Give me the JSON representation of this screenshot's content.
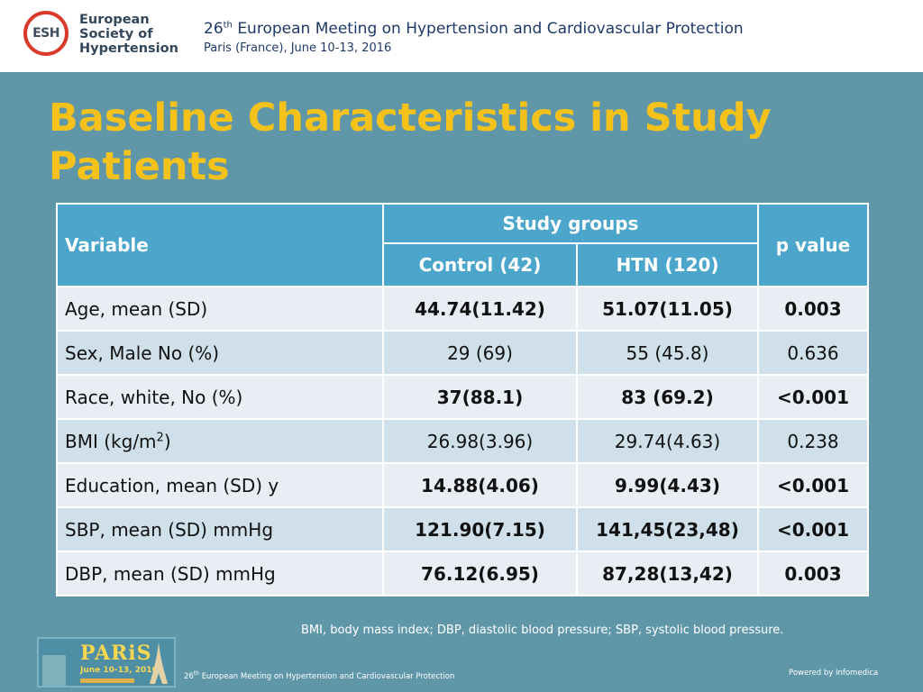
{
  "header": {
    "logo_abbrev": "ESH",
    "logo_lines": [
      "European",
      "Society of",
      "Hypertension"
    ],
    "conference_num": "26",
    "conference_suffix": "th",
    "conference_title": "European Meeting on Hypertension and Cardiovascular Protection",
    "conference_location": "Paris (France), June 10-13, 2016"
  },
  "slide": {
    "title_lines": [
      "Baseline Characteristics in Study",
      "Patients"
    ]
  },
  "table": {
    "header_variable": "Variable",
    "header_groups": "Study groups",
    "header_control": "Control (42)",
    "header_htn": "HTN (120)",
    "header_p": "p value",
    "rows": [
      {
        "variable": "Age, mean (SD)",
        "control": "44.74(11.42)",
        "htn": "51.07(11.05)",
        "p": "0.003"
      },
      {
        "variable": "Sex, Male No (%)",
        "control": "29 (69)",
        "htn": "55 (45.8)",
        "p": "0.636"
      },
      {
        "variable": "Race, white, No (%)",
        "control": "37(88.1)",
        "htn": "83 (69.2)",
        "p": "<0.001"
      },
      {
        "variable_prefix": "BMI (kg/m",
        "variable_sup": "2",
        "variable_suffix": ")",
        "control": "26.98(3.96)",
        "htn": "29.74(4.63)",
        "p": "0.238"
      },
      {
        "variable": "Education, mean (SD) y",
        "control": "14.88(4.06)",
        "htn": "9.99(4.43)",
        "p": "<0.001"
      },
      {
        "variable": "SBP, mean (SD) mmHg",
        "control": "121.90(7.15)",
        "htn": "141,45(23,48)",
        "p": "<0.001"
      },
      {
        "variable": "DBP, mean (SD) mmHg",
        "control": "76.12(6.95)",
        "htn": "87,28(13,42)",
        "p": "0.003"
      }
    ]
  },
  "footnote": "BMI, body mass index; DBP, diastolic blood pressure; SBP, systolic blood pressure.",
  "footer": {
    "paris_word": "PARiS",
    "paris_dates": "June 10-13, 2016",
    "conference_num": "26",
    "conference_suffix": "th",
    "conference_title": "European Meeting on Hypertension and Cardiovascular Protection",
    "powered_by": "Powered by Infomedica"
  }
}
